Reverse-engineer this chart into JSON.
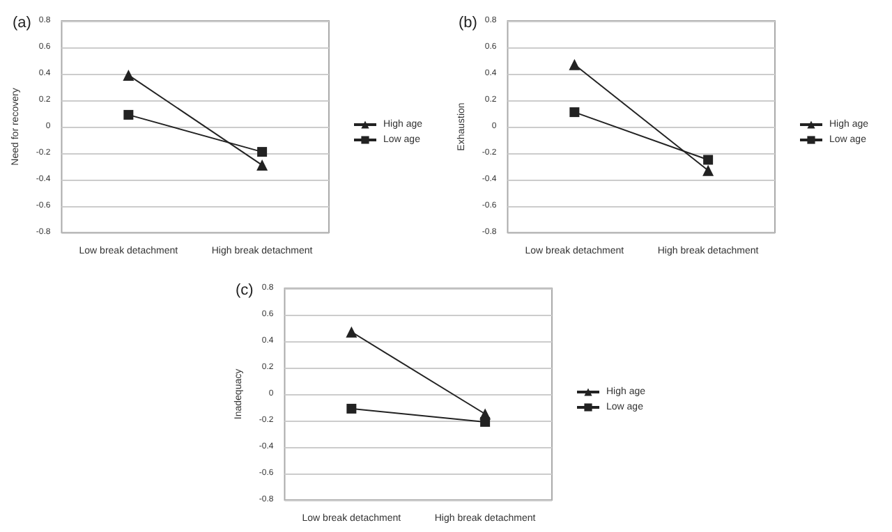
{
  "chart_data": [
    {
      "type": "line",
      "title": "(a)",
      "ylabel": "Need for recovery",
      "categories": [
        "Low break detachment",
        "High break detachment"
      ],
      "ylim": [
        -0.8,
        0.8
      ],
      "yticks": [
        -0.8,
        -0.6,
        -0.4,
        -0.2,
        0,
        0.2,
        0.4,
        0.6,
        0.8
      ],
      "grid": "y",
      "legend": "right",
      "line_style": "solid",
      "series": [
        {
          "name": "High age",
          "color": "#222222",
          "marker": "triangle",
          "values": [
            0.39,
            -0.29
          ]
        },
        {
          "name": "Low age",
          "color": "#222222",
          "marker": "square",
          "values": [
            0.09,
            -0.19
          ]
        }
      ]
    },
    {
      "type": "line",
      "title": "(b)",
      "ylabel": "Exhaustion",
      "categories": [
        "Low break detachment",
        "High break detachment"
      ],
      "ylim": [
        -0.8,
        0.8
      ],
      "yticks": [
        -0.8,
        -0.6,
        -0.4,
        -0.2,
        0,
        0.2,
        0.4,
        0.6,
        0.8
      ],
      "grid": "y",
      "legend": "right",
      "line_style": "solid",
      "series": [
        {
          "name": "High age",
          "color": "#222222",
          "marker": "triangle",
          "values": [
            0.47,
            -0.33
          ]
        },
        {
          "name": "Low age",
          "color": "#222222",
          "marker": "square",
          "values": [
            0.11,
            -0.25
          ]
        }
      ]
    },
    {
      "type": "line",
      "title": "(c)",
      "ylabel": "Inadequacy",
      "categories": [
        "Low break detachment",
        "High break detachment"
      ],
      "ylim": [
        -0.8,
        0.8
      ],
      "yticks": [
        -0.8,
        -0.6,
        -0.4,
        -0.2,
        0,
        0.2,
        0.4,
        0.6,
        0.8
      ],
      "grid": "y",
      "legend": "right",
      "line_style": "solid",
      "series": [
        {
          "name": "High age",
          "color": "#222222",
          "marker": "triangle",
          "values": [
            0.47,
            -0.15
          ]
        },
        {
          "name": "Low age",
          "color": "#222222",
          "marker": "square",
          "values": [
            -0.11,
            -0.21
          ]
        }
      ]
    }
  ]
}
